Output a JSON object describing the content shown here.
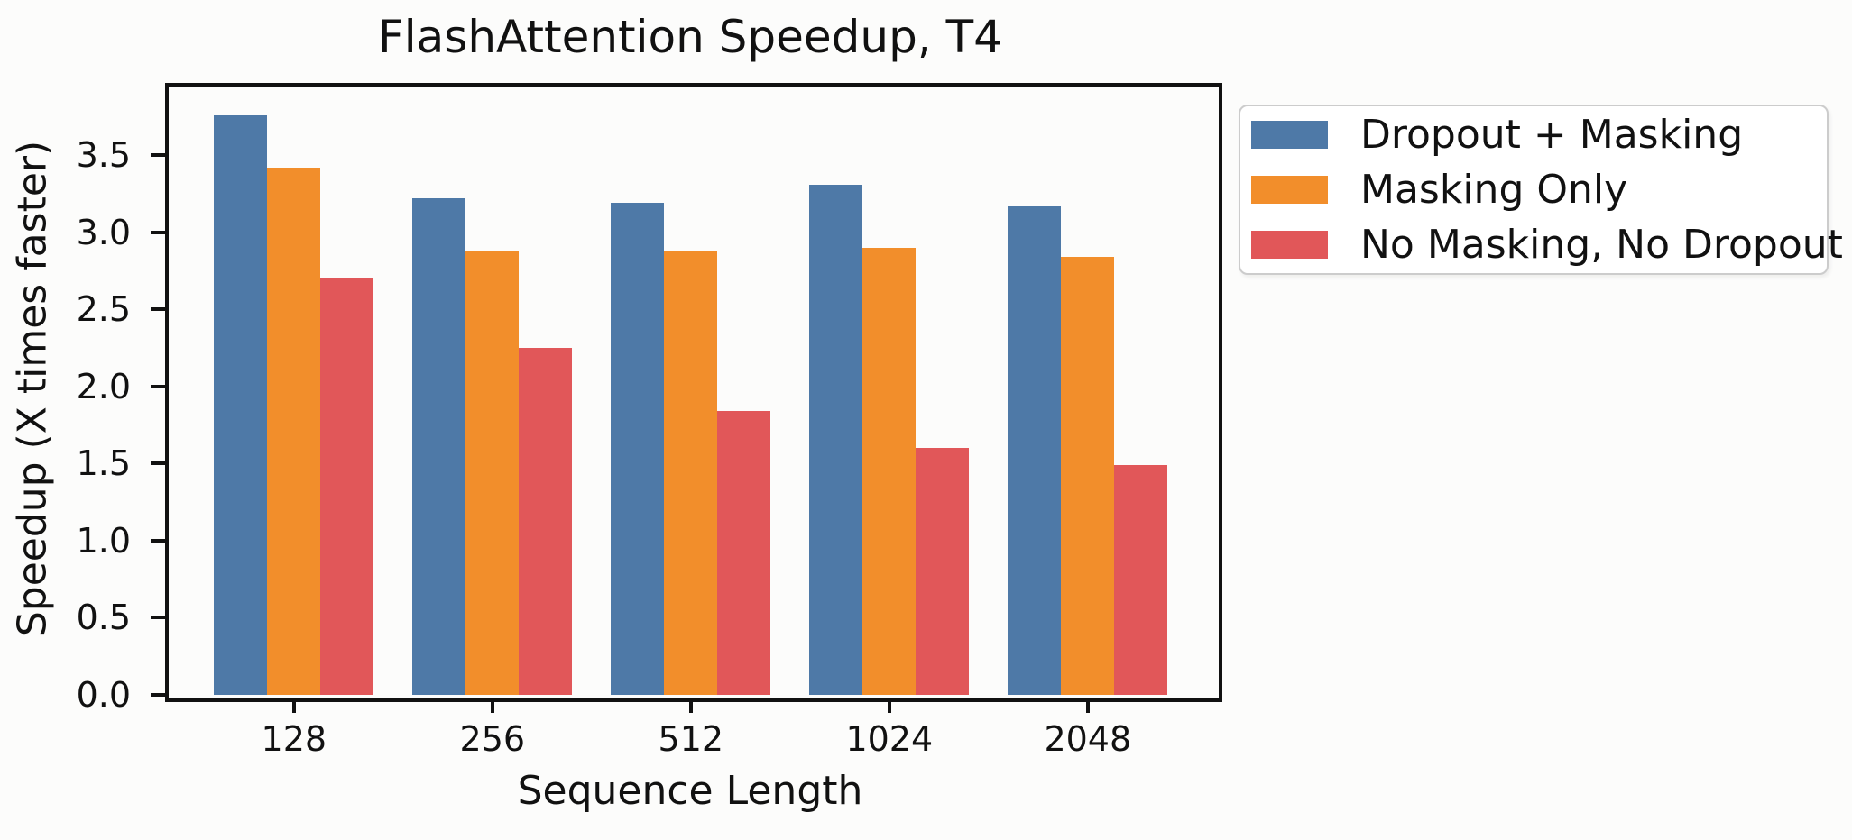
{
  "chart_data": {
    "type": "bar",
    "title": "FlashAttention Speedup, T4",
    "xlabel": "Sequence Length",
    "ylabel": "Speedup (X times faster)",
    "categories": [
      "128",
      "256",
      "512",
      "1024",
      "2048"
    ],
    "series": [
      {
        "name": "Dropout + Masking",
        "color": "#4e79a7",
        "values": [
          3.76,
          3.22,
          3.19,
          3.31,
          3.17
        ]
      },
      {
        "name": "Masking Only",
        "color": "#f28e2b",
        "values": [
          3.42,
          2.88,
          2.88,
          2.9,
          2.84
        ]
      },
      {
        "name": "No Masking, No Dropout",
        "color": "#e15759",
        "values": [
          2.71,
          2.25,
          1.84,
          1.6,
          1.49
        ]
      }
    ],
    "ylim": [
      0,
      3.97
    ],
    "yticks": [
      "0.0",
      "0.5",
      "1.0",
      "1.5",
      "2.0",
      "2.5",
      "3.0",
      "3.5"
    ],
    "grid": false,
    "legend_position": "outside-upper-right",
    "colors": {
      "axis": "#111111",
      "background": "#fcfcfb",
      "legend_border": "#cccccc"
    }
  }
}
